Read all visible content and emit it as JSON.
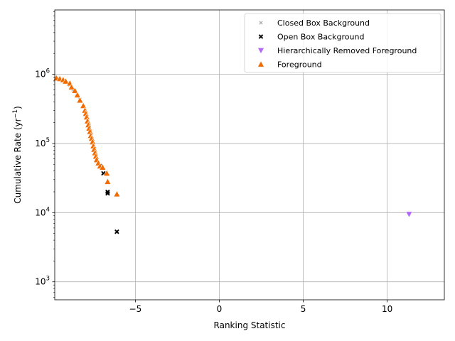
{
  "chart_data": {
    "type": "scatter",
    "xlabel": "Ranking Statistic",
    "ylabel_main": "Cumulative Rate (yr",
    "ylabel_sup": "−1",
    "ylabel_end": ")",
    "xlim": [
      -9.8,
      13.4
    ],
    "ylim": [
      550,
      8500000
    ],
    "yscale": "log",
    "grid": true,
    "legend_position": "top-right",
    "x_ticks": [
      {
        "value": -5,
        "label": "−5"
      },
      {
        "value": 0,
        "label": "0"
      },
      {
        "value": 5,
        "label": "5"
      },
      {
        "value": 10,
        "label": "10"
      }
    ],
    "y_ticks": [
      {
        "value": 1000,
        "base": "10",
        "exp": "3"
      },
      {
        "value": 10000,
        "base": "10",
        "exp": "4"
      },
      {
        "value": 100000,
        "base": "10",
        "exp": "5"
      },
      {
        "value": 1000000,
        "base": "10",
        "exp": "6"
      }
    ],
    "series": [
      {
        "name": "Closed Box Background",
        "marker": "x-small",
        "color": "#7f7f7f",
        "x": [
          -9.7,
          -9.5,
          -9.3,
          -9.1,
          -8.9,
          -8.7,
          -8.5,
          -8.3,
          -8.1,
          -7.9,
          -7.75,
          -7.6,
          -7.5,
          -7.4,
          -7.3
        ],
        "y": [
          880000,
          850000,
          800000,
          760000,
          700000,
          600000,
          520000,
          430000,
          340000,
          250000,
          180000,
          130000,
          95000,
          72000,
          55000
        ]
      },
      {
        "name": "Open Box Background",
        "marker": "x",
        "color": "#000000",
        "x": [
          -7.1,
          -6.9,
          -6.65,
          -6.65,
          -6.1
        ],
        "y": [
          47000,
          37000,
          20000,
          19000,
          5300
        ]
      },
      {
        "name": "Hierarchically Removed Foreground",
        "marker": "triangle-down",
        "color": "#b269f7",
        "x": [
          11.3
        ],
        "y": [
          9500
        ]
      },
      {
        "name": "Foreground",
        "marker": "triangle-up",
        "color": "#f26b00",
        "x": [
          -9.7,
          -9.5,
          -9.3,
          -9.15,
          -8.9,
          -8.8,
          -8.6,
          -8.45,
          -8.3,
          -8.1,
          -8.0,
          -7.95,
          -7.9,
          -7.85,
          -7.8,
          -7.75,
          -7.7,
          -7.65,
          -7.6,
          -7.55,
          -7.5,
          -7.45,
          -7.4,
          -7.35,
          -7.3,
          -7.2,
          -7.1,
          -6.95,
          -6.7,
          -6.65,
          -6.1
        ],
        "y": [
          880000,
          860000,
          830000,
          790000,
          740000,
          650000,
          580000,
          500000,
          420000,
          350000,
          300000,
          270000,
          240000,
          210000,
          185000,
          165000,
          148000,
          130000,
          118000,
          105000,
          92000,
          82000,
          73000,
          65000,
          58000,
          52000,
          47000,
          45000,
          37000,
          28000,
          18500
        ]
      }
    ],
    "colors": {
      "grid": "#b0b0b0",
      "axes": "#000000"
    }
  }
}
